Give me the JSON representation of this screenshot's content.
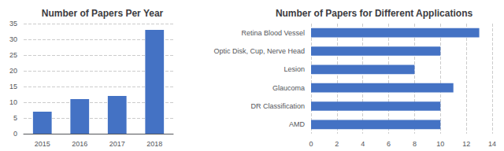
{
  "chart_data": [
    {
      "type": "bar",
      "title": "Number of Papers Per Year",
      "categories": [
        "2015",
        "2016",
        "2017",
        "2018"
      ],
      "values": [
        7,
        11,
        12,
        33
      ],
      "color": "#4472c4",
      "ylim": [
        0,
        35
      ],
      "yticks": [
        0,
        5,
        10,
        15,
        20,
        25,
        30,
        35
      ],
      "grid": true
    },
    {
      "type": "bar",
      "orientation": "horizontal",
      "title": "Number of Papers for Different Applications",
      "categories": [
        "Retina Blood Vessel",
        "Optic Disk, Cup, Nerve Head",
        "Lesion",
        "Glaucoma",
        "DR Classification",
        "AMD"
      ],
      "values": [
        13,
        10,
        8,
        11,
        10,
        10
      ],
      "color": "#4472c4",
      "xlim": [
        0,
        14
      ],
      "xticks": [
        0,
        2,
        4,
        6,
        8,
        10,
        12,
        14
      ],
      "grid": true
    }
  ]
}
